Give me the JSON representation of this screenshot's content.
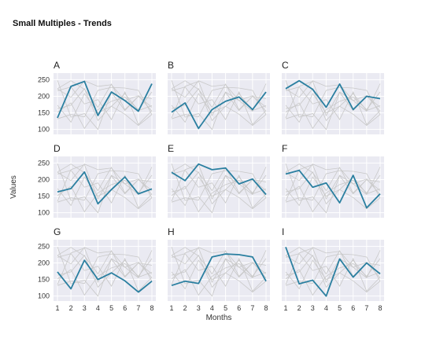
{
  "title": "Small Multiples - Trends",
  "chart_data": {
    "type": "line",
    "layout": "3x3 small multiples",
    "xlabel": "Months",
    "ylabel": "Values",
    "x": [
      1,
      2,
      3,
      4,
      5,
      6,
      7,
      8
    ],
    "ylim": [
      85,
      270
    ],
    "yticks": [
      100,
      150,
      200,
      250
    ],
    "grid": true,
    "highlight_color": "#2a7fa0",
    "background_color": "#eaeaf2",
    "context_color": "#c8c8c8",
    "series": [
      {
        "name": "A",
        "values": [
          135,
          230,
          245,
          142,
          213,
          187,
          155,
          238
        ]
      },
      {
        "name": "B",
        "values": [
          152,
          180,
          103,
          160,
          185,
          198,
          160,
          213
        ]
      },
      {
        "name": "C",
        "values": [
          223,
          247,
          221,
          167,
          237,
          160,
          200,
          193
        ]
      },
      {
        "name": "D",
        "values": [
          163,
          173,
          223,
          127,
          170,
          208,
          157,
          172
        ]
      },
      {
        "name": "E",
        "values": [
          222,
          197,
          247,
          230,
          235,
          187,
          202,
          155
        ]
      },
      {
        "name": "F",
        "values": [
          217,
          228,
          177,
          190,
          130,
          213,
          115,
          157
        ]
      },
      {
        "name": "G",
        "values": [
          173,
          122,
          208,
          150,
          170,
          146,
          112,
          145
        ]
      },
      {
        "name": "H",
        "values": [
          132,
          145,
          138,
          218,
          227,
          225,
          218,
          145
        ]
      },
      {
        "name": "I",
        "values": [
          248,
          137,
          148,
          100,
          212,
          157,
          200,
          167
        ]
      }
    ]
  }
}
